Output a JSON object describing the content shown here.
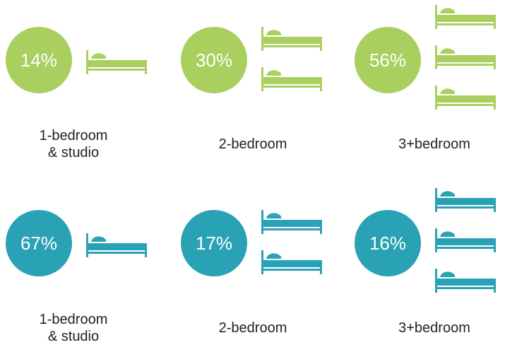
{
  "colors": {
    "green": "#a9cf5f",
    "teal": "#2aa2b5"
  },
  "rows": [
    {
      "color_key": "green",
      "items": [
        {
          "percent": "14%",
          "beds": 1,
          "label_line1": "1-bedroom",
          "label_line2": "& studio"
        },
        {
          "percent": "30%",
          "beds": 2,
          "label_line1": "2-bedroom",
          "label_line2": ""
        },
        {
          "percent": "56%",
          "beds": 3,
          "label_line1": "3+bedroom",
          "label_line2": ""
        }
      ]
    },
    {
      "color_key": "teal",
      "items": [
        {
          "percent": "67%",
          "beds": 1,
          "label_line1": "1-bedroom",
          "label_line2": "& studio"
        },
        {
          "percent": "17%",
          "beds": 2,
          "label_line1": "2-bedroom",
          "label_line2": ""
        },
        {
          "percent": "16%",
          "beds": 3,
          "label_line1": "3+bedroom",
          "label_line2": ""
        }
      ]
    }
  ]
}
